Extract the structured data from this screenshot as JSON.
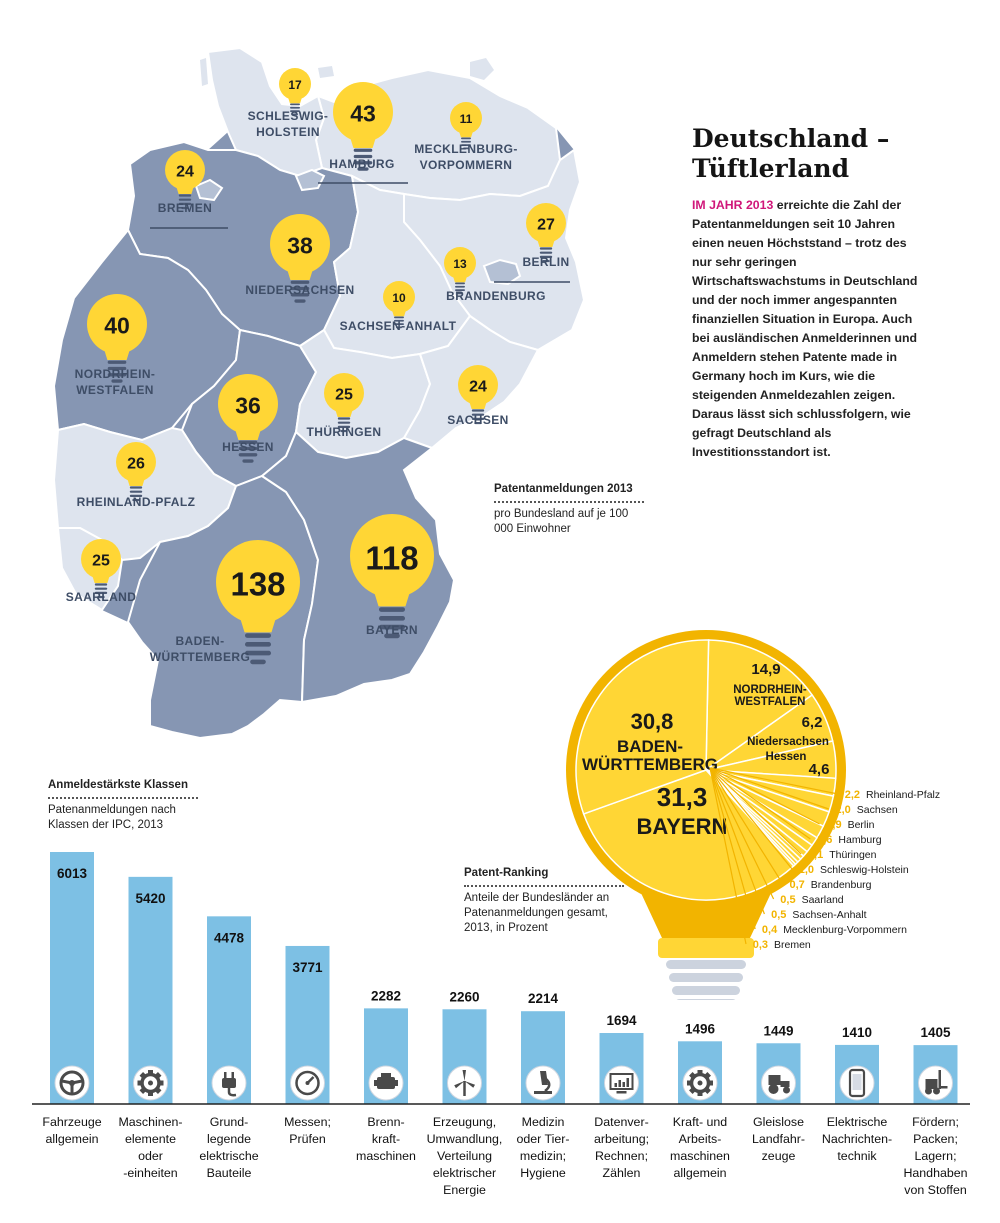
{
  "heading": {
    "title": "Deutschland –\nTüftlerland",
    "lead": "IM JAHR 2013",
    "body": " erreichte die Zahl der Patentanmeldungen seit 10 Jahren einen neuen Höchststand – trotz des nur sehr geringen Wirtschaftswachstums in Deutschland und der noch immer angespannten finanziellen Situation in Europa. Auch bei ausländischen Anmelderinnen und Anmeldern stehen Patente made in Germany hoch im Kurs, wie die steigenden Anmeldezahlen zeigen. Daraus lässt sich schlussfolgern, wie gefragt Deutschland als Investitionsstandort ist."
  },
  "colors": {
    "bulb_yellow": "#ffd635",
    "bulb_base": "#4c5a75",
    "map_light": "#dee4ee",
    "map_mid": "#b4c0d4",
    "map_dark": "#8696b3",
    "bar_blue": "#7dc0e4",
    "pie_yellow": "#ffd635",
    "pie_rim": "#f2b400",
    "accent_magenta": "#d0177a"
  },
  "captions": {
    "map": {
      "title": "Patentanmeldungen 2013",
      "subtitle": "pro Bundesland auf je 100 000 Einwohner"
    },
    "pie": {
      "title": "Patent-Ranking",
      "subtitle": "Anteile der Bundesländer an Patenanmeldungen gesamt, 2013, in Prozent"
    },
    "bars": {
      "title": "Anmeldestärkste Klassen",
      "subtitle": "Patenanmeldungen nach Klassen der IPC, 2013"
    }
  },
  "chart_data": [
    {
      "type": "map",
      "title": "Patentanmeldungen 2013",
      "subtitle": "pro Bundesland auf je 100 000 Einwohner",
      "regions": [
        {
          "name": "SCHLESWIG-\nHOLSTEIN",
          "value": 17
        },
        {
          "name": "HAMBURG",
          "value": 43
        },
        {
          "name": "MECKLENBURG-\nVORPOMMERN",
          "value": 11
        },
        {
          "name": "BREMEN",
          "value": 24
        },
        {
          "name": "BERLIN",
          "value": 27
        },
        {
          "name": "NIEDERSACHSEN",
          "value": 38
        },
        {
          "name": "BRANDENBURG",
          "value": 13
        },
        {
          "name": "SACHSEN-ANHALT",
          "value": 10
        },
        {
          "name": "NORDRHEIN-\nWESTFALEN",
          "value": 40
        },
        {
          "name": "SACHSEN",
          "value": 24
        },
        {
          "name": "HESSEN",
          "value": 36
        },
        {
          "name": "THÜRINGEN",
          "value": 25
        },
        {
          "name": "RHEINLAND-PFALZ",
          "value": 26
        },
        {
          "name": "SAARLAND",
          "value": 25
        },
        {
          "name": "BADEN-\nWÜRTTEMBERG",
          "value": 138
        },
        {
          "name": "BAYERN",
          "value": 118
        }
      ]
    },
    {
      "type": "pie",
      "title": "Patent-Ranking",
      "subtitle": "Anteile der Bundesländer an Patenanmeldungen gesamt, 2013, in Prozent",
      "slices": [
        {
          "label": "BAYERN",
          "value": 31.3,
          "display": "31,3"
        },
        {
          "label": "BADEN-\nWÜRTTEMBERG",
          "value": 30.8,
          "display": "30,8"
        },
        {
          "label": "NORDRHEIN-\nWESTFALEN",
          "value": 14.9,
          "display": "14,9"
        },
        {
          "label": "Niedersachsen",
          "value": 6.2,
          "display": "6,2"
        },
        {
          "label": "Hessen",
          "value": 4.6,
          "display": "4,6"
        },
        {
          "label": "Rheinland-Pfalz",
          "value": 2.2,
          "display": "2,2"
        },
        {
          "label": "Sachsen",
          "value": 2.0,
          "display": "2,0"
        },
        {
          "label": "Berlin",
          "value": 1.9,
          "display": "1,9"
        },
        {
          "label": "Hamburg",
          "value": 1.6,
          "display": "1,6"
        },
        {
          "label": "Thüringen",
          "value": 1.1,
          "display": "1,1"
        },
        {
          "label": "Schleswig-Holstein",
          "value": 1.0,
          "display": "1,0"
        },
        {
          "label": "Brandenburg",
          "value": 0.7,
          "display": "0,7"
        },
        {
          "label": "Saarland",
          "value": 0.5,
          "display": "0,5"
        },
        {
          "label": "Sachsen-Anhalt",
          "value": 0.5,
          "display": "0,5"
        },
        {
          "label": "Mecklenburg-Vorpommern",
          "value": 0.4,
          "display": "0,4"
        },
        {
          "label": "Bremen",
          "value": 0.3,
          "display": "0,3"
        }
      ]
    },
    {
      "type": "bar",
      "title": "Anmeldestärkste Klassen",
      "subtitle": "Patenanmeldungen nach Klassen der IPC, 2013",
      "categories": [
        "Fahrzeuge\nallgemein",
        "Maschinen-\nelemente\noder\n-einheiten",
        "Grund-\nlegende\nelektrische\nBauteile",
        "Messen;\nPrüfen",
        "Brenn-\nkraft-\nmaschinen",
        "Erzeugung,\nUmwandlung,\nVerteilung\nelektrischer\nEnergie",
        "Medizin\noder Tier-\nmedizin;\nHygiene",
        "Datenver-\narbeitung;\nRechnen;\nZählen",
        "Kraft- und\nArbeits-\nmaschinen\nallgemein",
        "Gleislose\nLandfahr-\nzeuge",
        "Elektrische\nNachrichten-\ntechnik",
        "Fördern;\nPacken;\nLagern;\nHandhaben\nvon Stoffen"
      ],
      "values": [
        6013,
        5420,
        4478,
        3771,
        2282,
        2260,
        2214,
        1694,
        1496,
        1449,
        1410,
        1405
      ],
      "icons": [
        "steering-wheel-icon",
        "gear-icon",
        "plug-icon",
        "gauge-icon",
        "engine-icon",
        "wind-turbine-icon",
        "microscope-icon",
        "monitor-chart-icon",
        "cogwheel-icon",
        "tractor-icon",
        "smartphone-icon",
        "forklift-icon"
      ]
    }
  ]
}
